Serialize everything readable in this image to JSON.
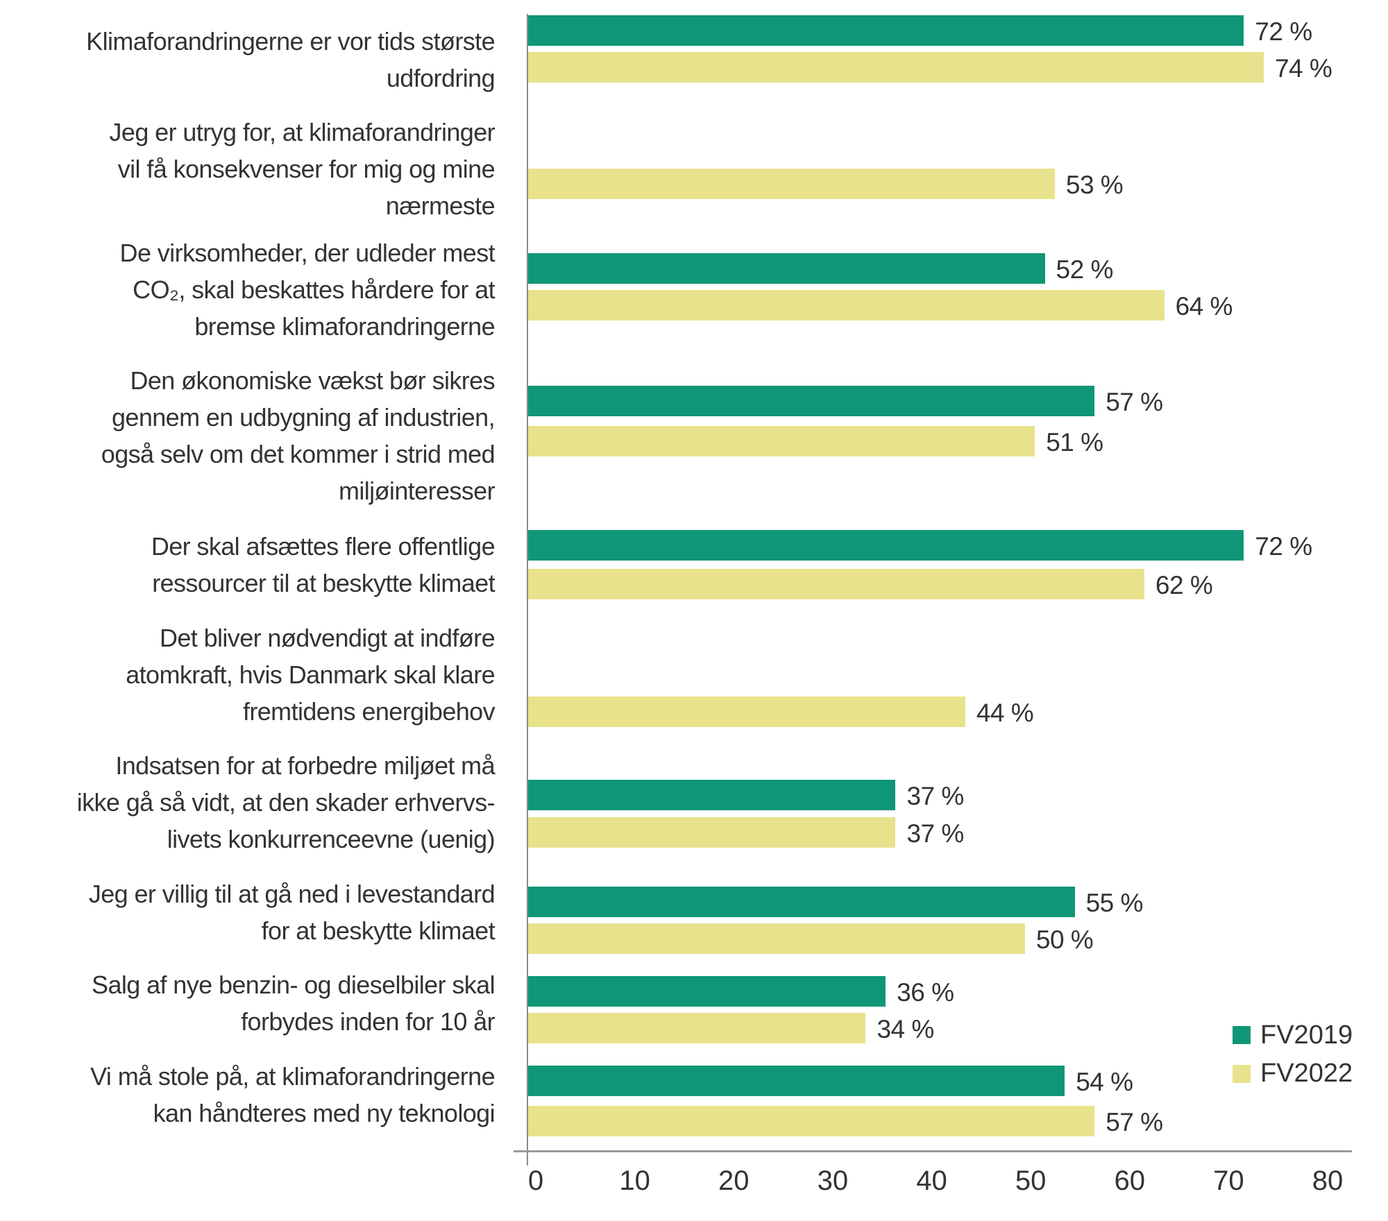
{
  "chart_data": {
    "type": "bar",
    "orientation": "horizontal",
    "categories": [
      "Klimaforandringerne er vor tids største\nudfordring",
      "Jeg er utryg for, at klimaforandringer\nvil få konsekvenser for mig og mine\nnærmeste",
      "De virksomheder, der udleder mest\nCO₂, skal beskattes hårdere for at\nbremse klimaforandringerne",
      "Den økonomiske vækst bør sikres\ngennem en udbygning af industrien,\nogså selv om det kommer i strid med\nmiljøinteresser",
      "Der skal afsættes flere offentlige\nressourcer til at beskytte klimaet",
      "Det bliver nødvendigt at indføre\natomkraft, hvis Danmark skal klare\nfremtidens energibehov",
      "Indsatsen for at forbedre miljøet må\nikke gå så vidt, at den skader erhvervs-\nlivets konkurrenceevne (uenig)",
      "Jeg er villig til at gå ned i levestandard\nfor at beskytte klimaet",
      "Salg af nye benzin- og dieselbiler skal\nforbydes inden for 10 år",
      "Vi må stole på, at klimaforandringerne\nkan håndteres med ny teknologi"
    ],
    "series": [
      {
        "name": "FV2019",
        "color": "#0e9677",
        "values": [
          72,
          null,
          52,
          57,
          72,
          null,
          37,
          55,
          36,
          54
        ]
      },
      {
        "name": "FV2022",
        "color": "#e8e28c",
        "values": [
          74,
          53,
          64,
          51,
          62,
          44,
          37,
          50,
          34,
          57
        ]
      }
    ],
    "value_suffix": " %",
    "xlim": [
      0,
      80
    ],
    "xticks": [
      "0",
      "10",
      "20",
      "30",
      "40",
      "50",
      "60",
      "70",
      "80"
    ],
    "grid": false,
    "legend": "bottom-right"
  }
}
